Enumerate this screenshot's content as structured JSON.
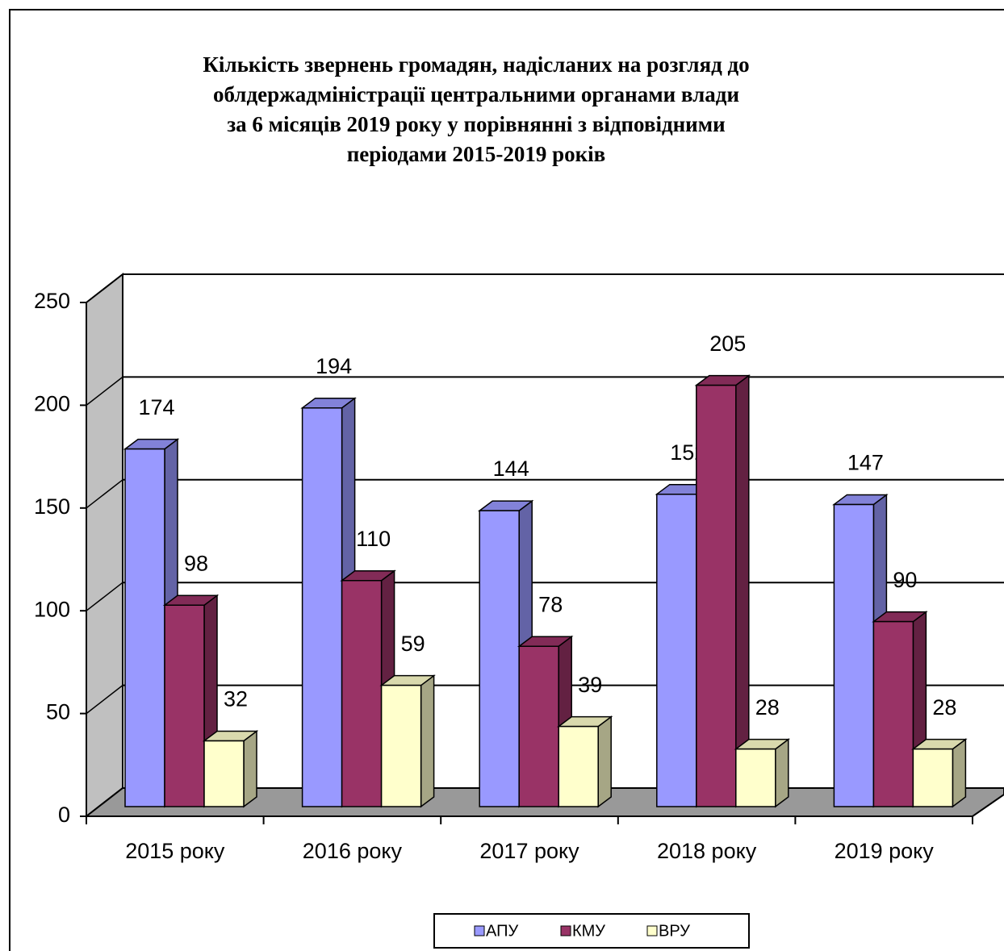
{
  "chart_data": {
    "type": "bar3d",
    "title": [
      "Кількість звернень громадян, надісланих на розгляд до",
      "облдержадміністрації центральними органами влади",
      "за 6 місяців 2019 року у порівнянні з відповідними",
      "періодами 2015-2019 років"
    ],
    "categories": [
      "2015 року",
      "2016 року",
      "2017 року",
      "2018 року",
      "2019 року"
    ],
    "series": [
      {
        "name": "АПУ",
        "color": "#9999ff",
        "values": [
          174,
          194,
          144,
          152,
          147
        ]
      },
      {
        "name": "КМУ",
        "color": "#993366",
        "values": [
          98,
          110,
          78,
          205,
          90
        ]
      },
      {
        "name": "ВРУ",
        "color": "#ffffcc",
        "values": [
          32,
          59,
          39,
          28,
          28
        ]
      }
    ],
    "ylim": [
      0,
      250
    ],
    "yticks": [
      0,
      50,
      100,
      150,
      200,
      250
    ],
    "grid": true,
    "legend": "bottom"
  }
}
